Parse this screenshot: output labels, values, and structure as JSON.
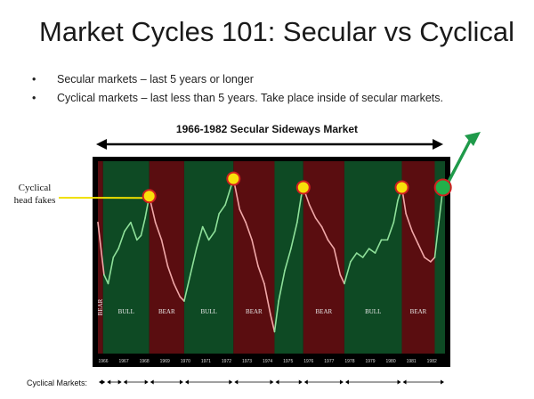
{
  "slide": {
    "title": "Market Cycles 101: Secular vs Cyclical",
    "bullets": [
      "Secular markets – last 5 years or longer",
      "Cyclical markets – last less than 5 years.  Take place inside of secular markets."
    ],
    "subtitle": "1966-1982 Secular Sideways Market",
    "side_label_line1": "Cyclical",
    "side_label_line2": "head fakes",
    "cyclical_markets_label": "Cyclical Markets:"
  },
  "colors": {
    "bull_band": "#0e4a24",
    "bear_band": "#5a0d10",
    "bull_line": "#8fe09a",
    "bear_line": "#f0a8a8",
    "marker_fill": "#f8e00a",
    "marker_ring": "#d02020",
    "final_marker": "#22b04a",
    "arrow_green": "#1f9a4a",
    "yellow_line": "#f0e000"
  },
  "chart_data": {
    "type": "line",
    "x_ticks": [
      "1966",
      "1967",
      "1968",
      "1969",
      "1970",
      "1971",
      "1972",
      "1973",
      "1974",
      "1975",
      "1976",
      "1977",
      "1978",
      "1979",
      "1980",
      "1981",
      "1982"
    ],
    "bands": [
      {
        "label": "BEAR",
        "type": "bear",
        "start": 1966.0,
        "end": 1966.25
      },
      {
        "label": "BULL",
        "type": "bull",
        "start": 1966.25,
        "end": 1968.5
      },
      {
        "label": "BEAR",
        "type": "bear",
        "start": 1968.5,
        "end": 1970.2
      },
      {
        "label": "BULL",
        "type": "bull",
        "start": 1970.2,
        "end": 1972.6
      },
      {
        "label": "BEAR",
        "type": "bear",
        "start": 1972.6,
        "end": 1974.6
      },
      {
        "label": "",
        "type": "bull",
        "start": 1974.6,
        "end": 1976.0
      },
      {
        "label": "BEAR",
        "type": "bear",
        "start": 1976.0,
        "end": 1978.0
      },
      {
        "label": "BULL",
        "type": "bull",
        "start": 1978.0,
        "end": 1980.8
      },
      {
        "label": "BEAR",
        "type": "bear",
        "start": 1980.8,
        "end": 1982.4
      },
      {
        "label": "",
        "type": "bull",
        "start": 1982.4,
        "end": 1982.9
      }
    ],
    "series": [
      {
        "values": [
          [
            1966.0,
            88
          ],
          [
            1966.3,
            76
          ],
          [
            1966.5,
            74
          ],
          [
            1966.75,
            80
          ],
          [
            1967.0,
            82
          ],
          [
            1967.3,
            86
          ],
          [
            1967.6,
            88
          ],
          [
            1967.9,
            84
          ],
          [
            1968.1,
            85
          ],
          [
            1968.3,
            89
          ],
          [
            1968.5,
            94
          ],
          [
            1968.8,
            88
          ],
          [
            1969.1,
            84
          ],
          [
            1969.4,
            78
          ],
          [
            1969.7,
            74
          ],
          [
            1970.0,
            71
          ],
          [
            1970.2,
            70
          ],
          [
            1970.5,
            76
          ],
          [
            1970.8,
            82
          ],
          [
            1971.1,
            87
          ],
          [
            1971.4,
            84
          ],
          [
            1971.7,
            86
          ],
          [
            1971.9,
            90
          ],
          [
            1972.2,
            92
          ],
          [
            1972.4,
            95
          ],
          [
            1972.6,
            98
          ],
          [
            1972.9,
            91
          ],
          [
            1973.2,
            88
          ],
          [
            1973.5,
            84
          ],
          [
            1973.8,
            78
          ],
          [
            1974.1,
            74
          ],
          [
            1974.4,
            67
          ],
          [
            1974.6,
            63
          ],
          [
            1974.8,
            70
          ],
          [
            1975.1,
            77
          ],
          [
            1975.4,
            82
          ],
          [
            1975.7,
            88
          ],
          [
            1975.9,
            94
          ],
          [
            1976.0,
            96
          ],
          [
            1976.3,
            92
          ],
          [
            1976.6,
            89
          ],
          [
            1976.9,
            87
          ],
          [
            1977.2,
            84
          ],
          [
            1977.5,
            82
          ],
          [
            1977.8,
            76
          ],
          [
            1978.0,
            74
          ],
          [
            1978.3,
            79
          ],
          [
            1978.6,
            81
          ],
          [
            1978.9,
            80
          ],
          [
            1979.2,
            82
          ],
          [
            1979.5,
            81
          ],
          [
            1979.8,
            84
          ],
          [
            1980.1,
            84
          ],
          [
            1980.4,
            88
          ],
          [
            1980.6,
            93
          ],
          [
            1980.8,
            96
          ],
          [
            1981.0,
            90
          ],
          [
            1981.3,
            86
          ],
          [
            1981.6,
            83
          ],
          [
            1981.9,
            80
          ],
          [
            1982.2,
            79
          ],
          [
            1982.4,
            80
          ],
          [
            1982.6,
            88
          ],
          [
            1982.8,
            96
          ]
        ]
      }
    ],
    "head_fakes": [
      [
        1968.5,
        94
      ],
      [
        1972.6,
        98
      ],
      [
        1976.0,
        96
      ],
      [
        1980.8,
        96
      ]
    ],
    "final_point": [
      1982.8,
      96
    ],
    "cyclical_market_spans": [
      [
        1966.0,
        1966.4
      ],
      [
        1966.4,
        1967.2
      ],
      [
        1967.2,
        1968.5
      ],
      [
        1968.5,
        1970.2
      ],
      [
        1970.2,
        1972.6
      ],
      [
        1972.6,
        1974.6
      ],
      [
        1974.6,
        1976.0
      ],
      [
        1976.0,
        1978.0
      ],
      [
        1978.0,
        1980.8
      ],
      [
        1980.8,
        1982.9
      ]
    ]
  }
}
